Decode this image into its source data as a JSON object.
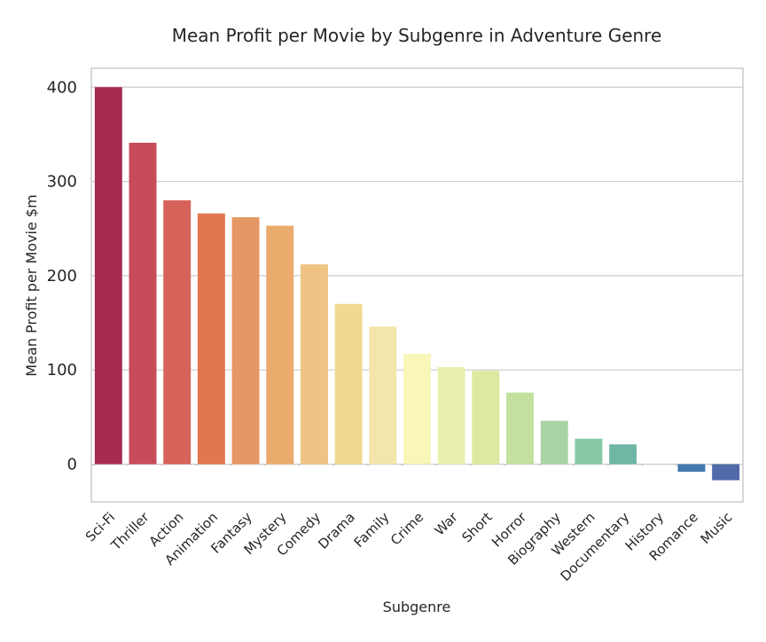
{
  "chart_data": {
    "type": "bar",
    "title": "Mean Profit per Movie by Subgenre in Adventure Genre",
    "xlabel": "Subgenre",
    "ylabel": "Mean Profit per Movie $m",
    "ylim": [
      -40,
      420
    ],
    "yticks": [
      0,
      100,
      200,
      300,
      400
    ],
    "grid": true,
    "legend": "none",
    "categories": [
      "Sci-Fi",
      "Thriller",
      "Action",
      "Animation",
      "Fantasy",
      "Mystery",
      "Comedy",
      "Drama",
      "Family",
      "Crime",
      "War",
      "Short",
      "Horror",
      "Biography",
      "Western",
      "Documentary",
      "History",
      "Romance",
      "Music"
    ],
    "values": [
      400,
      341,
      280,
      266,
      262,
      253,
      212,
      170,
      146,
      117,
      103,
      99,
      76,
      46,
      27,
      21,
      0,
      -8,
      -17
    ],
    "colors": [
      "#a72b4f",
      "#c84b5a",
      "#d7625a",
      "#e2774f",
      "#e69864",
      "#ebab6c",
      "#eec384",
      "#f2d891",
      "#f4e6ab",
      "#f8f7b8",
      "#eaf1b0",
      "#dde9a0",
      "#c4e09f",
      "#a9d4a5",
      "#87c9a7",
      "#70b6a5",
      "#5299b9",
      "#4278b0",
      "#5069a8"
    ]
  }
}
